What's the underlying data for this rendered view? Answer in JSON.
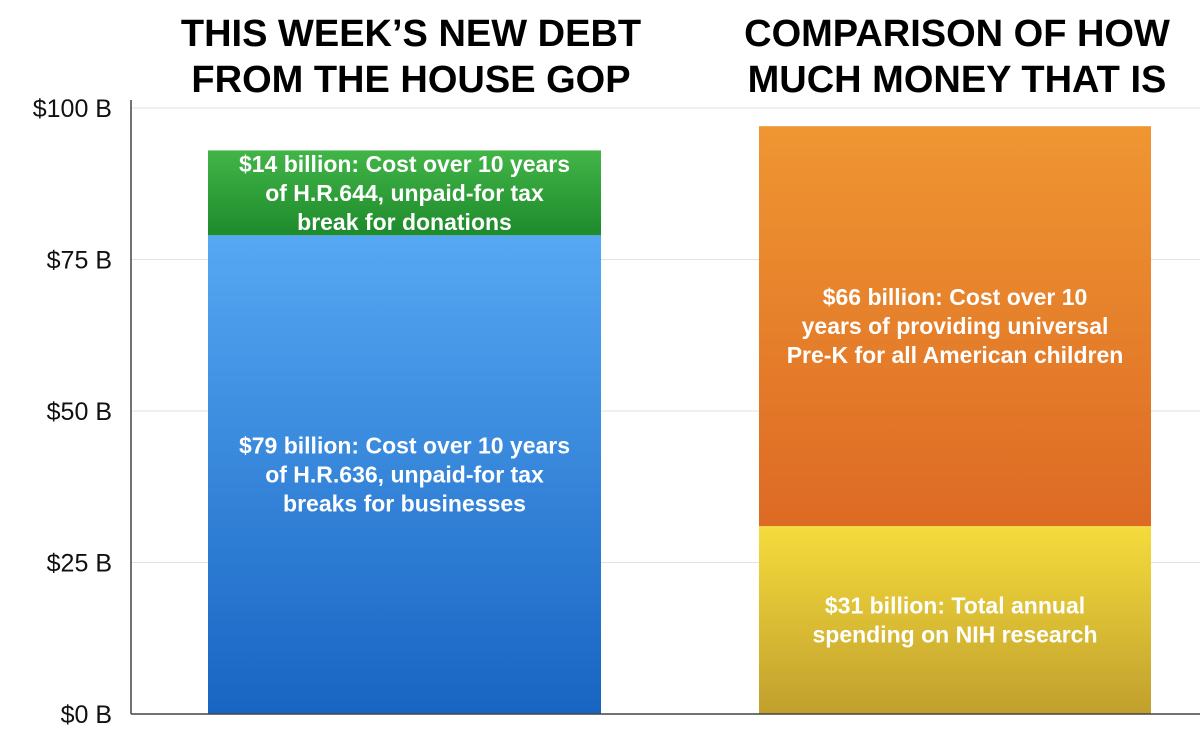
{
  "chart_data": {
    "type": "bar",
    "stacked": true,
    "column_titles": [
      [
        "THIS WEEK’S NEW DEBT",
        "FROM THE HOUSE GOP"
      ],
      [
        "COMPARISON OF HOW",
        "MUCH MONEY THAT IS"
      ]
    ],
    "y_ticks": [
      "$0 B",
      "$25 B",
      "$50 B",
      "$75 B",
      "$100 B"
    ],
    "ylim": [
      0,
      100
    ],
    "grid": true,
    "bars": [
      {
        "segments": [
          {
            "value": 79,
            "label_lines": [
              "$79 billion: Cost over 10 years",
              "of H.R.636, unpaid-for tax",
              "breaks for businesses"
            ],
            "color_top": "#56a8f3",
            "color_bottom": "#1764c2"
          },
          {
            "value": 14,
            "label_lines": [
              "$14 billion: Cost over 10 years",
              "of H.R.644, unpaid-for tax",
              "break for donations"
            ],
            "color_top": "#42b548",
            "color_bottom": "#1d8a2b"
          }
        ]
      },
      {
        "segments": [
          {
            "value": 31,
            "label_lines": [
              "$31 billion: Total annual",
              "spending on NIH research"
            ],
            "color_top": "#f5dc3c",
            "color_bottom": "#c19f2d"
          },
          {
            "value": 66,
            "label_lines": [
              "$66 billion: Cost over 10",
              "years of providing universal",
              "Pre-K for all American children"
            ],
            "color_top": "#ef9632",
            "color_bottom": "#dd6a24"
          }
        ]
      }
    ]
  }
}
